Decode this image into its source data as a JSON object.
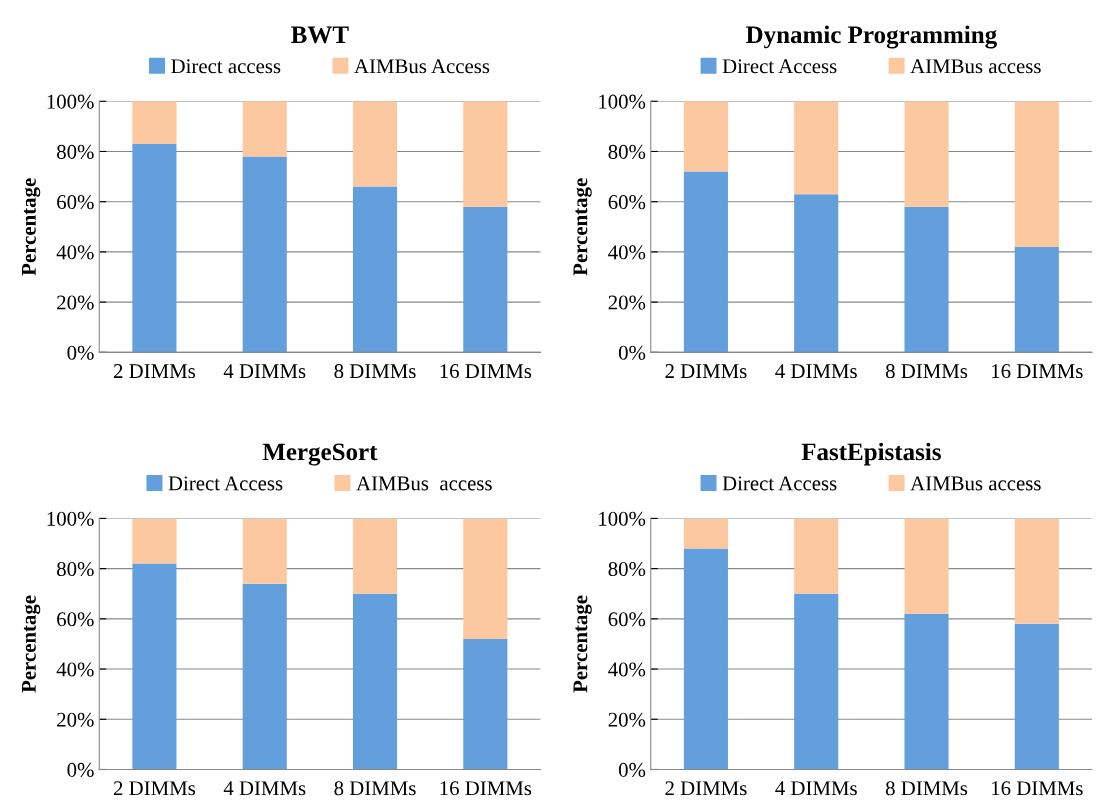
{
  "chart_data": [
    {
      "type": "bar",
      "title": "BWT",
      "ylabel": "Percentage",
      "stacked": true,
      "legend": "top",
      "grid": "y",
      "categories": [
        "2 DIMMs",
        "4 DIMMs",
        "8 DIMMs",
        "16 DIMMs"
      ],
      "ylim": [
        0,
        100
      ],
      "yticks": [
        {
          "value": 0,
          "label": "0%"
        },
        {
          "value": 20,
          "label": "20%"
        },
        {
          "value": 40,
          "label": "40%"
        },
        {
          "value": 60,
          "label": "60%"
        },
        {
          "value": 80,
          "label": "80%"
        },
        {
          "value": 100,
          "label": "100%"
        }
      ],
      "series": [
        {
          "name": "Direct access",
          "color": "#629fdc",
          "values": [
            83,
            78,
            66,
            58
          ]
        },
        {
          "name": "AIMBus Access",
          "color": "#fbc89f",
          "values": [
            17,
            22,
            34,
            42
          ]
        }
      ]
    },
    {
      "type": "bar",
      "title": "Dynamic Programming",
      "ylabel": "Percentage",
      "stacked": true,
      "legend": "top",
      "grid": "y",
      "categories": [
        "2 DIMMs",
        "4 DIMMs",
        "8 DIMMs",
        "16 DIMMs"
      ],
      "ylim": [
        0,
        100
      ],
      "yticks": [
        {
          "value": 0,
          "label": "0%"
        },
        {
          "value": 20,
          "label": "20%"
        },
        {
          "value": 40,
          "label": "40%"
        },
        {
          "value": 60,
          "label": "60%"
        },
        {
          "value": 80,
          "label": "80%"
        },
        {
          "value": 100,
          "label": "100%"
        }
      ],
      "series": [
        {
          "name": "Direct Access",
          "color": "#629fdc",
          "values": [
            72,
            63,
            58,
            42
          ]
        },
        {
          "name": "AIMBus access",
          "color": "#fbc89f",
          "values": [
            28,
            37,
            42,
            58
          ]
        }
      ]
    },
    {
      "type": "bar",
      "title": "MergeSort",
      "ylabel": "Percentage",
      "stacked": true,
      "legend": "top",
      "grid": "y",
      "categories": [
        "2 DIMMs",
        "4 DIMMs",
        "8 DIMMs",
        "16 DIMMs"
      ],
      "ylim": [
        0,
        100
      ],
      "yticks": [
        {
          "value": 0,
          "label": "0%"
        },
        {
          "value": 20,
          "label": "20%"
        },
        {
          "value": 40,
          "label": "40%"
        },
        {
          "value": 60,
          "label": "60%"
        },
        {
          "value": 80,
          "label": "80%"
        },
        {
          "value": 100,
          "label": "100%"
        }
      ],
      "series": [
        {
          "name": "Direct Access",
          "color": "#629fdc",
          "values": [
            82,
            74,
            70,
            52
          ]
        },
        {
          "name": "AIMBus  access",
          "color": "#fbc89f",
          "values": [
            18,
            26,
            30,
            48
          ]
        }
      ]
    },
    {
      "type": "bar",
      "title": "FastEpistasis",
      "ylabel": "Percentage",
      "stacked": true,
      "legend": "top",
      "grid": "y",
      "categories": [
        "2 DIMMs",
        "4 DIMMs",
        "8 DIMMs",
        "16 DIMMs"
      ],
      "ylim": [
        0,
        100
      ],
      "yticks": [
        {
          "value": 0,
          "label": "0%"
        },
        {
          "value": 20,
          "label": "20%"
        },
        {
          "value": 40,
          "label": "40%"
        },
        {
          "value": 60,
          "label": "60%"
        },
        {
          "value": 80,
          "label": "80%"
        },
        {
          "value": 100,
          "label": "100%"
        }
      ],
      "series": [
        {
          "name": "Direct Access",
          "color": "#629fdc",
          "values": [
            88,
            70,
            62,
            58
          ]
        },
        {
          "name": "AIMBus access",
          "color": "#fbc89f",
          "values": [
            12,
            30,
            38,
            42
          ]
        }
      ]
    }
  ]
}
